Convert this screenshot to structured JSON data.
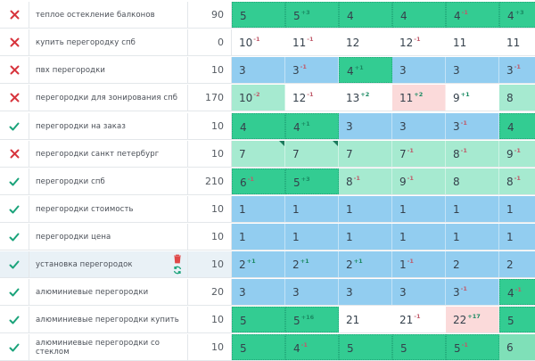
{
  "colors": {
    "dark": "#33cc92",
    "mid": "#7fe0b8",
    "light": "#a6ead0",
    "blue": "#92cdf0",
    "white": "#ffffff",
    "pink": "#fbdada",
    "check": "#1aa37a",
    "cross": "#d7353d"
  },
  "rows": [
    {
      "status": "cross",
      "keyword": "теплое остекление балконов",
      "freq": "90",
      "cells": [
        {
          "v": "5",
          "d": "",
          "c": "dark"
        },
        {
          "v": "5",
          "d": "+3",
          "c": "dark"
        },
        {
          "v": "4",
          "d": "",
          "c": "dark"
        },
        {
          "v": "4",
          "d": "",
          "c": "dark"
        },
        {
          "v": "4",
          "d": "-1",
          "c": "dark"
        },
        {
          "v": "4",
          "d": "+3",
          "c": "dark"
        }
      ]
    },
    {
      "status": "cross",
      "keyword": "купить перегородку спб",
      "freq": "0",
      "cells": [
        {
          "v": "10",
          "d": "-1",
          "c": "white"
        },
        {
          "v": "11",
          "d": "-1",
          "c": "white"
        },
        {
          "v": "12",
          "d": "",
          "c": "white"
        },
        {
          "v": "12",
          "d": "-1",
          "c": "white"
        },
        {
          "v": "11",
          "d": "",
          "c": "white"
        },
        {
          "v": "11",
          "d": "",
          "c": "white"
        }
      ]
    },
    {
      "status": "cross",
      "keyword": "пвх перегородки",
      "freq": "10",
      "cells": [
        {
          "v": "3",
          "d": "",
          "c": "blue"
        },
        {
          "v": "3",
          "d": "-1",
          "c": "blue"
        },
        {
          "v": "4",
          "d": "+1",
          "c": "dark"
        },
        {
          "v": "3",
          "d": "",
          "c": "blue"
        },
        {
          "v": "3",
          "d": "",
          "c": "blue"
        },
        {
          "v": "3",
          "d": "-1",
          "c": "blue"
        }
      ]
    },
    {
      "status": "cross",
      "keyword": "перегородки для зонирования спб",
      "freq": "170",
      "cells": [
        {
          "v": "10",
          "d": "-2",
          "c": "light"
        },
        {
          "v": "12",
          "d": "-1",
          "c": "white"
        },
        {
          "v": "13",
          "d": "+2",
          "c": "white"
        },
        {
          "v": "11",
          "d": "+2",
          "c": "pink"
        },
        {
          "v": "9",
          "d": "+1",
          "c": "white"
        },
        {
          "v": "8",
          "d": "",
          "c": "light"
        }
      ]
    },
    {
      "status": "check",
      "keyword": "перегородки на заказ",
      "freq": "10",
      "cells": [
        {
          "v": "4",
          "d": "",
          "c": "dark"
        },
        {
          "v": "4",
          "d": "+1",
          "c": "dark"
        },
        {
          "v": "3",
          "d": "",
          "c": "blue"
        },
        {
          "v": "3",
          "d": "",
          "c": "blue"
        },
        {
          "v": "3",
          "d": "-1",
          "c": "blue"
        },
        {
          "v": "4",
          "d": "",
          "c": "dark"
        }
      ]
    },
    {
      "status": "cross",
      "keyword": "перегородки санкт петербург",
      "freq": "10",
      "cells": [
        {
          "v": "7",
          "d": "",
          "c": "light",
          "flag": true
        },
        {
          "v": "7",
          "d": "",
          "c": "light",
          "flag": true
        },
        {
          "v": "7",
          "d": "",
          "c": "light"
        },
        {
          "v": "7",
          "d": "-1",
          "c": "light"
        },
        {
          "v": "8",
          "d": "-1",
          "c": "light"
        },
        {
          "v": "9",
          "d": "-1",
          "c": "light"
        }
      ]
    },
    {
      "status": "check",
      "keyword": "перегородки спб",
      "freq": "210",
      "cells": [
        {
          "v": "6",
          "d": "-1",
          "c": "dark"
        },
        {
          "v": "5",
          "d": "+3",
          "c": "dark"
        },
        {
          "v": "8",
          "d": "-1",
          "c": "light"
        },
        {
          "v": "9",
          "d": "-1",
          "c": "light"
        },
        {
          "v": "8",
          "d": "",
          "c": "light"
        },
        {
          "v": "8",
          "d": "-1",
          "c": "light"
        }
      ]
    },
    {
      "status": "check",
      "keyword": "перегородки стоимость",
      "freq": "10",
      "cells": [
        {
          "v": "1",
          "d": "",
          "c": "blue"
        },
        {
          "v": "1",
          "d": "",
          "c": "blue"
        },
        {
          "v": "1",
          "d": "",
          "c": "blue"
        },
        {
          "v": "1",
          "d": "",
          "c": "blue"
        },
        {
          "v": "1",
          "d": "",
          "c": "blue"
        },
        {
          "v": "1",
          "d": "",
          "c": "blue"
        }
      ]
    },
    {
      "status": "check",
      "keyword": "перегородки цена",
      "freq": "10",
      "cells": [
        {
          "v": "1",
          "d": "",
          "c": "blue"
        },
        {
          "v": "1",
          "d": "",
          "c": "blue"
        },
        {
          "v": "1",
          "d": "",
          "c": "blue"
        },
        {
          "v": "1",
          "d": "",
          "c": "blue"
        },
        {
          "v": "1",
          "d": "",
          "c": "blue"
        },
        {
          "v": "1",
          "d": "",
          "c": "blue"
        }
      ]
    },
    {
      "status": "check",
      "keyword": "установка перегородок",
      "freq": "10",
      "highlighted": true,
      "cells": [
        {
          "v": "2",
          "d": "+1",
          "c": "blue"
        },
        {
          "v": "2",
          "d": "+1",
          "c": "blue"
        },
        {
          "v": "2",
          "d": "+1",
          "c": "blue"
        },
        {
          "v": "1",
          "d": "-1",
          "c": "blue"
        },
        {
          "v": "2",
          "d": "",
          "c": "blue"
        },
        {
          "v": "2",
          "d": "",
          "c": "blue"
        }
      ]
    },
    {
      "status": "check",
      "keyword": "алюминиевые перегородки",
      "freq": "20",
      "cells": [
        {
          "v": "3",
          "d": "",
          "c": "blue"
        },
        {
          "v": "3",
          "d": "",
          "c": "blue"
        },
        {
          "v": "3",
          "d": "",
          "c": "blue"
        },
        {
          "v": "3",
          "d": "",
          "c": "blue"
        },
        {
          "v": "3",
          "d": "-1",
          "c": "blue"
        },
        {
          "v": "4",
          "d": "-1",
          "c": "dark"
        }
      ]
    },
    {
      "status": "check",
      "keyword": "алюминиевые перегородки купить",
      "freq": "10",
      "cells": [
        {
          "v": "5",
          "d": "",
          "c": "dark"
        },
        {
          "v": "5",
          "d": "+16",
          "c": "dark"
        },
        {
          "v": "21",
          "d": "",
          "c": "white"
        },
        {
          "v": "21",
          "d": "-1",
          "c": "white"
        },
        {
          "v": "22",
          "d": "+17",
          "c": "pink"
        },
        {
          "v": "5",
          "d": "",
          "c": "dark"
        }
      ]
    },
    {
      "status": "check",
      "keyword": "алюминиевые перегородки со стеклом",
      "freq": "10",
      "cells": [
        {
          "v": "5",
          "d": "",
          "c": "dark"
        },
        {
          "v": "4",
          "d": "-1",
          "c": "dark"
        },
        {
          "v": "5",
          "d": "",
          "c": "dark"
        },
        {
          "v": "5",
          "d": "",
          "c": "dark"
        },
        {
          "v": "5",
          "d": "-1",
          "c": "dark"
        },
        {
          "v": "6",
          "d": "",
          "c": "mid"
        }
      ]
    }
  ]
}
